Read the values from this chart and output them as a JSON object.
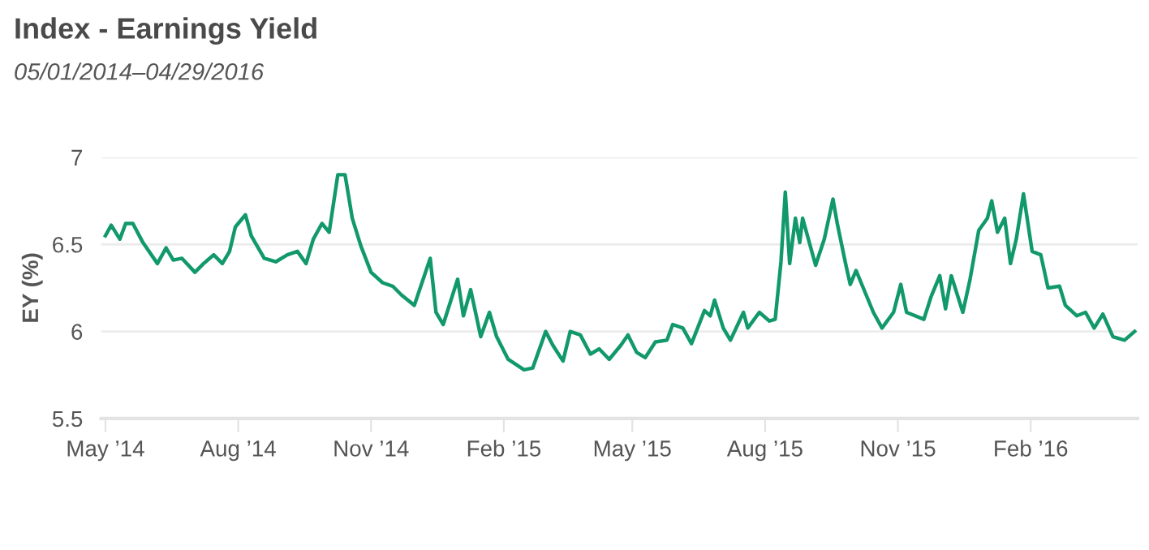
{
  "chart_data": {
    "type": "line",
    "title": "Index - Earnings Yield",
    "subtitle": "05/01/2014–04/29/2016",
    "ylabel": "EY (%)",
    "x": [
      "2014-05-01",
      "2014-05-05",
      "2014-05-11",
      "2014-05-15",
      "2014-05-20",
      "2014-05-27",
      "2014-06-06",
      "2014-06-12",
      "2014-06-17",
      "2014-06-23",
      "2014-07-02",
      "2014-07-08",
      "2014-07-15",
      "2014-07-21",
      "2014-07-26",
      "2014-07-30",
      "2014-08-06",
      "2014-08-10",
      "2014-08-19",
      "2014-08-27",
      "2014-09-04",
      "2014-09-11",
      "2014-09-17",
      "2014-09-22",
      "2014-09-28",
      "2014-10-03",
      "2014-10-09",
      "2014-10-14",
      "2014-10-19",
      "2014-10-25",
      "2014-11-01",
      "2014-11-09",
      "2014-11-16",
      "2014-11-22",
      "2014-12-01",
      "2014-12-12",
      "2014-12-16",
      "2014-12-21",
      "2014-12-31",
      "2015-01-04",
      "2015-01-09",
      "2015-01-16",
      "2015-01-22",
      "2015-01-27",
      "2015-02-04",
      "2015-02-15",
      "2015-02-21",
      "2015-03-02",
      "2015-03-07",
      "2015-03-14",
      "2015-03-19",
      "2015-03-26",
      "2015-04-02",
      "2015-04-08",
      "2015-04-15",
      "2015-04-23",
      "2015-04-28",
      "2015-05-04",
      "2015-05-10",
      "2015-05-17",
      "2015-05-25",
      "2015-05-29",
      "2015-06-05",
      "2015-06-11",
      "2015-06-20",
      "2015-06-24",
      "2015-06-27",
      "2015-07-03",
      "2015-07-08",
      "2015-07-17",
      "2015-07-20",
      "2015-07-28",
      "2015-08-04",
      "2015-08-08",
      "2015-08-12",
      "2015-08-15",
      "2015-08-18",
      "2015-08-22",
      "2015-08-25",
      "2015-08-27",
      "2015-09-05",
      "2015-09-11",
      "2015-09-17",
      "2015-09-20",
      "2015-09-26",
      "2015-09-29",
      "2015-10-03",
      "2015-10-10",
      "2015-10-15",
      "2015-10-21",
      "2015-10-29",
      "2015-11-03",
      "2015-11-07",
      "2015-11-19",
      "2015-11-24",
      "2015-11-30",
      "2015-12-04",
      "2015-12-08",
      "2015-12-16",
      "2015-12-21",
      "2015-12-27",
      "2016-01-02",
      "2016-01-05",
      "2016-01-09",
      "2016-01-14",
      "2016-01-18",
      "2016-01-22",
      "2016-01-27",
      "2016-02-02",
      "2016-02-08",
      "2016-02-13",
      "2016-02-21",
      "2016-02-25",
      "2016-03-04",
      "2016-03-10",
      "2016-03-16",
      "2016-03-22",
      "2016-03-29",
      "2016-04-06",
      "2016-04-13"
    ],
    "series": [
      {
        "color": "#12996b",
        "values": [
          6.55,
          6.61,
          6.53,
          6.62,
          6.62,
          6.51,
          6.39,
          6.48,
          6.41,
          6.42,
          6.34,
          6.39,
          6.44,
          6.39,
          6.46,
          6.6,
          6.67,
          6.55,
          6.42,
          6.4,
          6.44,
          6.46,
          6.39,
          6.53,
          6.62,
          6.57,
          6.9,
          6.9,
          6.65,
          6.49,
          6.34,
          6.28,
          6.26,
          6.21,
          6.15,
          6.42,
          6.11,
          6.04,
          6.3,
          6.09,
          6.24,
          5.97,
          6.11,
          5.97,
          5.84,
          5.78,
          5.79,
          6.0,
          5.92,
          5.83,
          6.0,
          5.98,
          5.87,
          5.9,
          5.84,
          5.92,
          5.98,
          5.88,
          5.85,
          5.94,
          5.95,
          6.04,
          6.02,
          5.93,
          6.12,
          6.09,
          6.18,
          6.02,
          5.95,
          6.11,
          6.02,
          6.11,
          6.06,
          6.07,
          6.4,
          6.8,
          6.39,
          6.65,
          6.51,
          6.65,
          6.38,
          6.53,
          6.76,
          6.62,
          6.38,
          6.27,
          6.35,
          6.21,
          6.11,
          6.02,
          6.11,
          6.27,
          6.11,
          6.07,
          6.2,
          6.32,
          6.13,
          6.32,
          6.11,
          6.3,
          6.58,
          6.65,
          6.75,
          6.57,
          6.65,
          6.39,
          6.53,
          6.79,
          6.46,
          6.44,
          6.25,
          6.26,
          6.15,
          6.09,
          6.11,
          6.02,
          6.1,
          5.97,
          5.95,
          6.0
        ]
      }
    ],
    "xlim": [
      "2014-04-28",
      "2016-04-15"
    ],
    "xticks": [
      {
        "value": "2014-05-01",
        "label": "May ’14"
      },
      {
        "value": "2014-08-01",
        "label": "Aug ’14"
      },
      {
        "value": "2014-11-01",
        "label": "Nov ’14"
      },
      {
        "value": "2015-02-01",
        "label": "Feb ’15"
      },
      {
        "value": "2015-05-01",
        "label": "May ’15"
      },
      {
        "value": "2015-08-01",
        "label": "Aug ’15"
      },
      {
        "value": "2015-11-01",
        "label": "Nov ’15"
      },
      {
        "value": "2016-02-01",
        "label": "Feb ’16"
      }
    ],
    "ylim": [
      5.5,
      7
    ],
    "yticks": [
      5.5,
      6,
      6.5,
      7
    ],
    "grid": "y",
    "legend": false
  }
}
